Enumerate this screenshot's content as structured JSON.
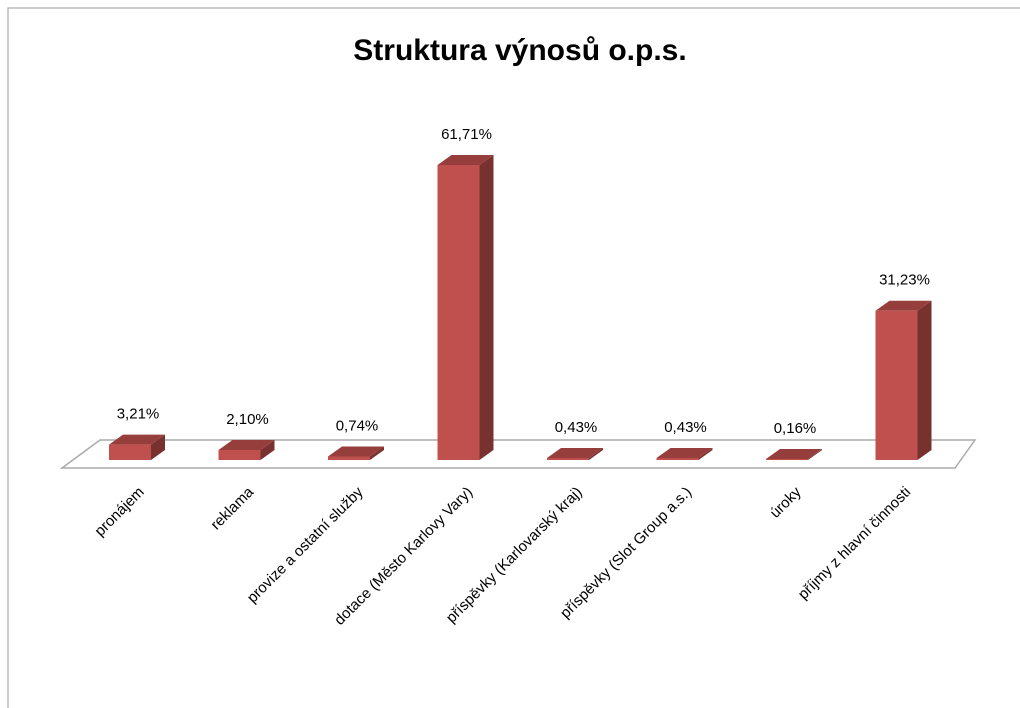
{
  "chart_data": {
    "type": "bar3d",
    "title": "Struktura výnosů o.p.s.",
    "categories": [
      "pronájem",
      "reklama",
      "provize a ostatní služby",
      "dotace (Město Karlovy Vary)",
      "příspěvky (Karlovarský kraj)",
      "příspěvky (Slot Group a.s.)",
      "úroky",
      "příjmy z hlavní činnosti"
    ],
    "values": [
      3.21,
      2.1,
      0.74,
      61.71,
      0.43,
      0.43,
      0.16,
      31.23
    ],
    "value_labels": [
      "3,21%",
      "2,10%",
      "0,74%",
      "61,71%",
      "0,43%",
      "0,43%",
      "0,16%",
      "31,23%"
    ],
    "color": "#c0504d"
  }
}
